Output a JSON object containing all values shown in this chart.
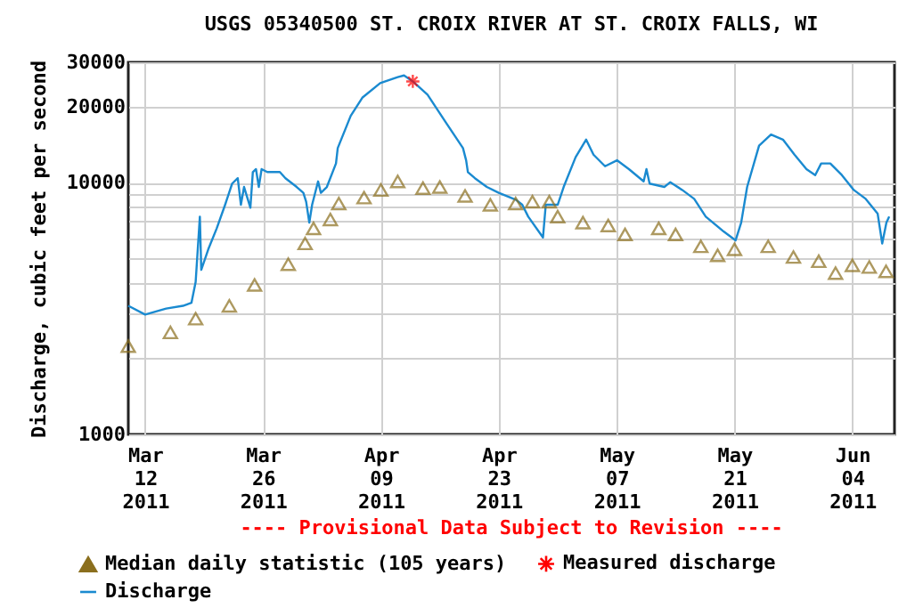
{
  "chart_data": {
    "type": "line",
    "title": "USGS 05340500 ST. CROIX RIVER AT ST. CROIX FALLS, WI",
    "ylabel": "Discharge, cubic feet per second",
    "annotations": [
      "---- Provisional Data Subject to Revision ----"
    ],
    "log": "y",
    "grid": true,
    "legend": "bottom",
    "xlim": [
      "2011-03-10",
      "2011-06-09"
    ],
    "xticks": [
      {
        "value": "2011-03-12",
        "label": "Mar\n12\n2011"
      },
      {
        "value": "2011-03-26",
        "label": "Mar\n26\n2011"
      },
      {
        "value": "2011-04-09",
        "label": "Apr\n09\n2011"
      },
      {
        "value": "2011-04-23",
        "label": "Apr\n23\n2011"
      },
      {
        "value": "2011-05-07",
        "label": "May\n07\n2011"
      },
      {
        "value": "2011-05-21",
        "label": "May\n21\n2011"
      },
      {
        "value": "2011-06-04",
        "label": "Jun\n04\n2011"
      }
    ],
    "ylim": [
      1000,
      30000
    ],
    "yticks": [
      1000,
      {
        "value": 2000,
        "label": null
      },
      {
        "value": 3000,
        "label": null
      },
      {
        "value": 4000,
        "label": null
      },
      {
        "value": 5000,
        "label": null
      },
      {
        "value": 6000,
        "label": null
      },
      {
        "value": 7000,
        "label": null
      },
      {
        "value": 8000,
        "label": null
      },
      {
        "value": 9000,
        "label": null
      },
      10000,
      20000,
      30000
    ],
    "series": [
      {
        "name": "Median daily statistic (105 years)",
        "type": "scatter",
        "marker": "triangle",
        "color": "#8b6f1e",
        "x": [
          "2011-03-10",
          "2011-03-15",
          "2011-03-18",
          "2011-03-22",
          "2011-03-25",
          "2011-03-29",
          "2011-03-31",
          "2011-04-01",
          "2011-04-03",
          "2011-04-04",
          "2011-04-07",
          "2011-04-09",
          "2011-04-11",
          "2011-04-14",
          "2011-04-16",
          "2011-04-19",
          "2011-04-22",
          "2011-04-25",
          "2011-04-27",
          "2011-04-29",
          "2011-04-30",
          "2011-05-03",
          "2011-05-06",
          "2011-05-08",
          "2011-05-12",
          "2011-05-14",
          "2011-05-17",
          "2011-05-19",
          "2011-05-21",
          "2011-05-25",
          "2011-05-28",
          "2011-05-31",
          "2011-06-02",
          "2011-06-04",
          "2011-06-06",
          "2011-06-08"
        ],
        "values": [
          2240,
          2540,
          2880,
          3240,
          3920,
          4740,
          5730,
          6570,
          7130,
          8250,
          8710,
          9340,
          10100,
          9500,
          9600,
          8850,
          8160,
          8250,
          8390,
          8390,
          7320,
          6930,
          6750,
          6220,
          6570,
          6220,
          5580,
          5140,
          5430,
          5580,
          5060,
          4870,
          4370,
          4690,
          4620,
          4440
        ]
      },
      {
        "name": "Measured discharge",
        "type": "scatter",
        "marker": "cross",
        "color": "#ff0000",
        "x": [
          "2011-04-12T19:00"
        ],
        "values": [
          25200
        ]
      },
      {
        "name": "Discharge",
        "color": "#1a8ad0",
        "x": [
          "2011-03-10",
          "2011-03-12",
          "2011-03-14T12:00",
          "2011-03-16T12:00",
          "2011-03-17T12:00",
          "2011-03-18",
          "2011-03-18T12:00",
          "2011-03-18T16:00",
          "2011-03-19T12:00",
          "2011-03-20T12:00",
          "2011-03-21T12:00",
          "2011-03-22T08:00",
          "2011-03-23",
          "2011-03-23T09:00",
          "2011-03-23T18:00",
          "2011-03-24T12:00",
          "2011-03-24T19:00",
          "2011-03-25T04:00",
          "2011-03-25T12:00",
          "2011-03-25T20:00",
          "2011-03-26T12:00",
          "2011-03-28",
          "2011-03-28T16:00",
          "2011-03-30",
          "2011-03-30T19:00",
          "2011-03-31T03:00",
          "2011-03-31T12:00",
          "2011-03-31T20:00",
          "2011-04-01T13:00",
          "2011-04-01T21:00",
          "2011-04-02T14:00",
          "2011-04-03T16:00",
          "2011-04-03T21:00",
          "2011-04-05T10:00",
          "2011-04-06T19:00",
          "2011-04-08T22:00",
          "2011-04-11",
          "2011-04-11T18:00",
          "2011-04-12T19:00",
          "2011-04-14T13:00",
          "2011-04-16T16:00",
          "2011-04-18T18:00",
          "2011-04-19T03:00",
          "2011-04-19T08:00",
          "2011-04-20T04:00",
          "2011-04-21T14:00",
          "2011-04-23",
          "2011-04-25T02:00",
          "2011-04-25T19:00",
          "2011-04-26T12:00",
          "2011-04-28T06:00",
          "2011-04-28T14:00",
          "2011-04-30",
          "2011-04-30T17:00",
          "2011-05-02T03:00",
          "2011-05-03T09:00",
          "2011-05-04T06:00",
          "2011-05-05T15:00",
          "2011-05-07T01:00",
          "2011-05-08T11:00",
          "2011-05-10T05:00",
          "2011-05-10T13:00",
          "2011-05-10T22:00",
          "2011-05-12T16:00",
          "2011-05-13T09:00",
          "2011-05-14T19:00",
          "2011-05-16T05:00",
          "2011-05-17T14:00",
          "2011-05-19T17:00",
          "2011-05-21T03:00",
          "2011-05-21T19:00",
          "2011-05-22T12:00",
          "2011-05-23T22:00",
          "2011-05-25T08:00",
          "2011-05-26T18:00",
          "2011-05-28T03:00",
          "2011-05-29T13:00",
          "2011-05-30T14:00",
          "2011-05-31T07:00",
          "2011-06-01T09:00",
          "2011-06-02T18:00",
          "2011-06-04T04:00",
          "2011-06-05T14:00",
          "2011-06-07",
          "2011-06-07T13:00",
          "2011-06-08T01:00",
          "2011-06-08T09:00"
        ],
        "values": [
          3240,
          2990,
          3160,
          3240,
          3330,
          4030,
          7320,
          4500,
          5430,
          6570,
          8160,
          9900,
          10400,
          8160,
          9600,
          7940,
          11000,
          11300,
          9600,
          11300,
          11000,
          11000,
          10400,
          9600,
          9100,
          8390,
          6930,
          8160,
          10100,
          9100,
          9600,
          11900,
          13700,
          18400,
          21700,
          24800,
          26200,
          26600,
          25200,
          22300,
          17400,
          13700,
          12250,
          11000,
          10400,
          9600,
          9100,
          8520,
          8160,
          7320,
          6050,
          8160,
          8160,
          9600,
          12600,
          14800,
          12900,
          11600,
          12250,
          11300,
          10100,
          11300,
          9900,
          9600,
          10030,
          9340,
          8610,
          7320,
          6390,
          5890,
          6930,
          9600,
          14000,
          15500,
          14800,
          12900,
          11300,
          10700,
          11900,
          11900,
          10700,
          9340,
          8610,
          7520,
          5730,
          6930,
          7320
        ]
      }
    ]
  }
}
